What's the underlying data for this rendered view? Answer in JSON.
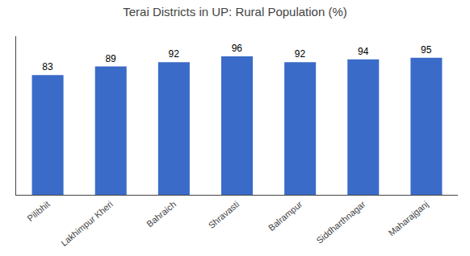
{
  "chart_data": {
    "type": "bar",
    "title": "Terai Districts in UP: Rural Population (%)",
    "categories": [
      "Pilibhit",
      "Lakhimpur Kheri",
      "Bahraich",
      "Shravasti",
      "Balrampur",
      "Siddharthnagar",
      "Maharajganj"
    ],
    "values": [
      83,
      89,
      92,
      96,
      92,
      94,
      95
    ],
    "color": "#3b6bc8",
    "ylim": [
      0,
      110
    ],
    "grid": false,
    "data_labels": true,
    "tick_labels": "x"
  }
}
